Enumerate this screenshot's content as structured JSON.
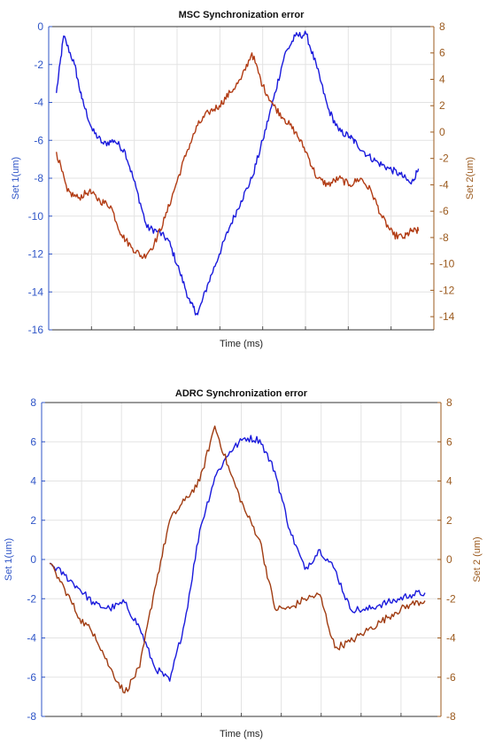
{
  "chart_data": [
    {
      "type": "line",
      "title": "MSC Synchronization error",
      "xlabel": "Time (ms)",
      "ylabel_left": "Set 1(um)",
      "ylabel_right": "Set 2(um)",
      "grid": true,
      "x_ticks_labeled": false,
      "x_grid_count": 8,
      "left_axis": {
        "ylim": [
          -16,
          0
        ],
        "ticks": [
          0,
          -2,
          -4,
          -6,
          -8,
          -10,
          -12,
          -14,
          -16
        ],
        "color": "#2f55c7"
      },
      "right_axis": {
        "ylim": [
          -15,
          8
        ],
        "ticks": [
          8,
          6,
          4,
          2,
          0,
          -2,
          -4,
          -6,
          -8,
          -10,
          -12,
          -14
        ],
        "color": "#9b5a1e"
      },
      "series": [
        {
          "name": "Set 1",
          "axis": "left",
          "color": "#1a1adc",
          "x": [
            0,
            0.2,
            0.5,
            0.7,
            1.0,
            1.3,
            1.6,
            1.9,
            2.2,
            2.5,
            2.8,
            3.1,
            3.4,
            3.7,
            3.9,
            4.2,
            4.5,
            4.8,
            5.1,
            5.4,
            5.7,
            6.0,
            6.3,
            6.6,
            6.9,
            7.2,
            7.5,
            7.8,
            8.1,
            8.3,
            8.6,
            8.9,
            9.2,
            9.5,
            9.8,
            10
          ],
          "y": [
            -3.5,
            -0.5,
            -2,
            -3.8,
            -5.5,
            -6.2,
            -6,
            -6.6,
            -8.5,
            -10.6,
            -10.8,
            -11.3,
            -12.9,
            -14.6,
            -15.2,
            -13.5,
            -12,
            -10.5,
            -9.2,
            -8,
            -6,
            -3.8,
            -1.5,
            -0.5,
            -0.4,
            -2.2,
            -4.3,
            -5.5,
            -5.8,
            -6.2,
            -6.8,
            -7.2,
            -7.5,
            -7.8,
            -8.3,
            -7.5
          ]
        },
        {
          "name": "Set 2",
          "axis": "right",
          "color": "#b23c14",
          "x": [
            0,
            0.3,
            0.6,
            0.9,
            1.2,
            1.5,
            1.8,
            2.1,
            2.4,
            2.7,
            3.0,
            3.3,
            3.6,
            3.9,
            4.2,
            4.5,
            4.8,
            5.1,
            5.4,
            5.7,
            6.0,
            6.3,
            6.6,
            6.9,
            7.2,
            7.5,
            7.8,
            8.1,
            8.4,
            8.7,
            9.0,
            9.3,
            9.6,
            9.8,
            10
          ],
          "y": [
            -1.5,
            -4.5,
            -5,
            -4.5,
            -5.2,
            -5.6,
            -7.8,
            -8.8,
            -9.5,
            -8.5,
            -6.5,
            -4,
            -1.5,
            0.5,
            1.5,
            2,
            3,
            4,
            6,
            3.5,
            2,
            1,
            0,
            -1.5,
            -3.5,
            -4,
            -3.5,
            -4,
            -3.5,
            -4.5,
            -6.5,
            -7.8,
            -8,
            -7.5,
            -7.5
          ]
        }
      ]
    },
    {
      "type": "line",
      "title": "ADRC Synchronization error",
      "xlabel": "Time (ms)",
      "ylabel_left": "Set 1(um)",
      "ylabel_right": "Set 2  (um)",
      "grid": true,
      "x_ticks_labeled": false,
      "x_grid_count": 9,
      "left_axis": {
        "ylim": [
          -8,
          8
        ],
        "ticks": [
          8,
          6,
          4,
          2,
          0,
          -2,
          -4,
          -6,
          -8
        ],
        "color": "#2f55c7"
      },
      "right_axis": {
        "ylim": [
          -8,
          8
        ],
        "ticks": [
          8,
          6,
          4,
          2,
          0,
          -2,
          -4,
          -6,
          -8
        ],
        "color": "#9b5a1e"
      },
      "series": [
        {
          "name": "Set 1",
          "axis": "left",
          "color": "#1a1adc",
          "x": [
            0,
            0.4,
            0.8,
            1.2,
            1.6,
            2.0,
            2.4,
            2.8,
            3.2,
            3.6,
            4.0,
            4.4,
            4.8,
            5.2,
            5.6,
            6.0,
            6.4,
            6.8,
            7.2,
            7.6,
            8.0,
            8.4,
            8.8,
            9.2,
            9.6,
            10
          ],
          "y": [
            -0.2,
            -0.8,
            -1.5,
            -2.3,
            -2.5,
            -2.2,
            -3.5,
            -5.5,
            -6.2,
            -3.2,
            1.5,
            4.2,
            5.5,
            6.2,
            6.1,
            4.5,
            1.5,
            -0.5,
            0.5,
            -0.5,
            -2.5,
            -2.6,
            -2.3,
            -2.1,
            -1.8,
            -1.7
          ]
        },
        {
          "name": "Set 2",
          "axis": "right",
          "color": "#a03c12",
          "x": [
            0,
            0.4,
            0.8,
            1.2,
            1.6,
            2.0,
            2.4,
            2.8,
            3.2,
            3.6,
            4.0,
            4.4,
            4.8,
            5.2,
            5.6,
            6.0,
            6.4,
            6.8,
            7.2,
            7.6,
            8.0,
            8.4,
            8.8,
            9.2,
            9.6,
            10
          ],
          "y": [
            -0.2,
            -1.5,
            -3,
            -3.8,
            -5.5,
            -6.8,
            -5.5,
            -1.5,
            2,
            3,
            4,
            6.8,
            4.5,
            2.5,
            1,
            -2.5,
            -2.5,
            -2,
            -1.8,
            -4.5,
            -4.2,
            -3.7,
            -3.2,
            -2.7,
            -2.3,
            -2.1
          ]
        }
      ]
    }
  ]
}
